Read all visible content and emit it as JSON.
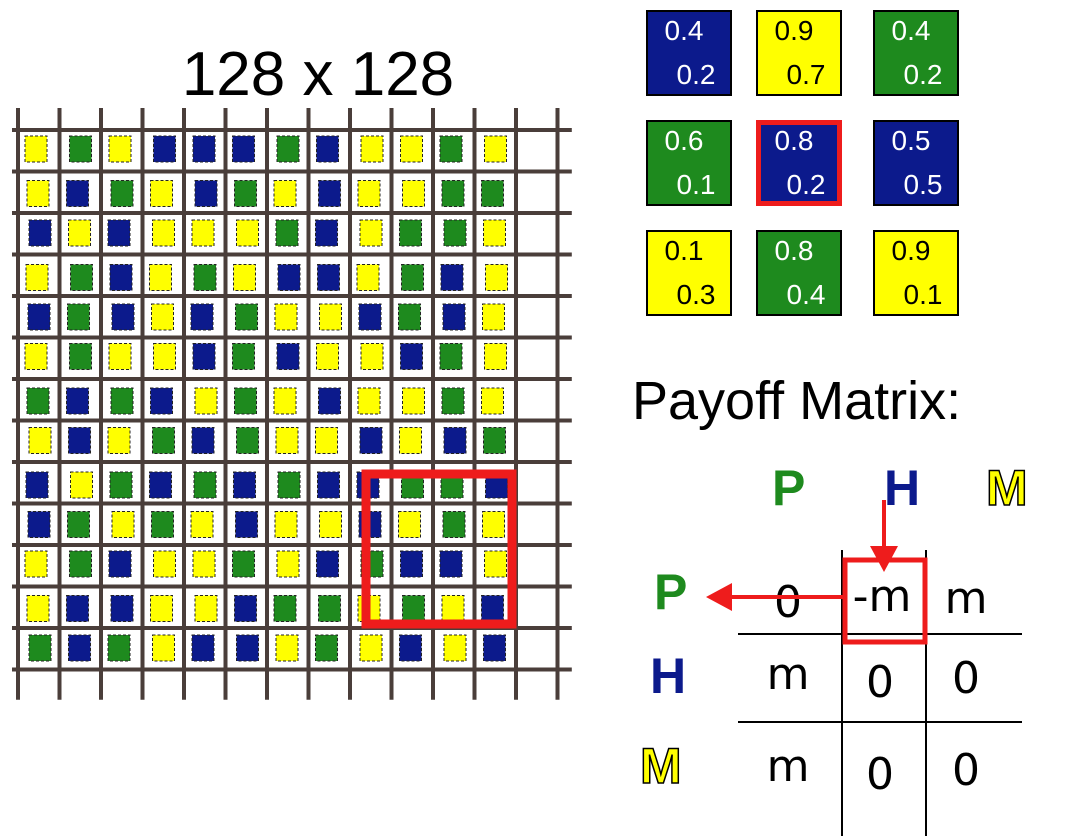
{
  "grid": {
    "title": "128 x 128",
    "palette": {
      "P": "#1e8a1e",
      "H": "#0c1a8c",
      "M": "#ffff00"
    },
    "pattern": [
      "MPMHHHPHMMPM",
      "MHPMHPMHMMPP",
      "HMHMMMPHMPPM",
      "MPHMPMHHMPHM",
      "HPHMHPMMHPHM",
      "MPMMHPHMMHPM",
      "PHPHMPMHMMPM",
      "MHMPHPMMHMHP",
      "HMPHPHPHHPPH",
      "HPMPMHMMHMPM",
      "MPHMMPMHPHHM",
      "MHHMMHPPMPMH",
      "PHPMHHMPMHMH"
    ]
  },
  "tiles": [
    {
      "color": "#0c1a8c",
      "text_color": "#ffffff",
      "v1": "0.4",
      "v2": "0.2"
    },
    {
      "color": "#ffff00",
      "text_color": "#000000",
      "v1": "0.9",
      "v2": "0.7"
    },
    {
      "color": "#1e8a1e",
      "text_color": "#ffffff",
      "v1": "0.4",
      "v2": "0.2"
    },
    {
      "color": "#1e8a1e",
      "text_color": "#ffffff",
      "v1": "0.6",
      "v2": "0.1"
    },
    {
      "color": "#0c1a8c",
      "text_color": "#ffffff",
      "v1": "0.8",
      "v2": "0.2",
      "highlighted": true
    },
    {
      "color": "#0c1a8c",
      "text_color": "#ffffff",
      "v1": "0.5",
      "v2": "0.5"
    },
    {
      "color": "#ffff00",
      "text_color": "#000000",
      "v1": "0.1",
      "v2": "0.3"
    },
    {
      "color": "#1e8a1e",
      "text_color": "#ffffff",
      "v1": "0.8",
      "v2": "0.4"
    },
    {
      "color": "#ffff00",
      "text_color": "#000000",
      "v1": "0.9",
      "v2": "0.1"
    }
  ],
  "payoff": {
    "title": "Payoff Matrix:",
    "col_labels": [
      {
        "text": "P",
        "color": "#1e8a1e"
      },
      {
        "text": "H",
        "color": "#0c1a8c"
      },
      {
        "text": "M",
        "color": "#ffff00"
      }
    ],
    "row_labels": [
      {
        "text": "P",
        "color": "#1e8a1e"
      },
      {
        "text": "H",
        "color": "#0c1a8c"
      },
      {
        "text": "M",
        "color": "#ffff00"
      }
    ],
    "cells": [
      [
        "0",
        "-m",
        "m"
      ],
      [
        "m",
        "0",
        "0"
      ],
      [
        "m",
        "0",
        "0"
      ]
    ],
    "highlight_color": "#ee1c1c"
  }
}
